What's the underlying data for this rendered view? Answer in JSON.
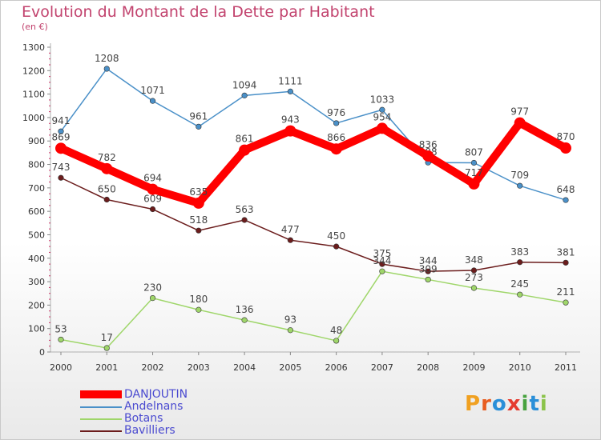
{
  "title": "Evolution du Montant de la Dette par Habitant",
  "subtitle": "(en €)",
  "logo": {
    "text": "Proxiti",
    "letters": [
      "P",
      "r",
      "o",
      "x",
      "i",
      "t",
      "i"
    ],
    "colors": [
      "#f0a020",
      "#e85d20",
      "#2a8fd8",
      "#e53b2f",
      "#47a23f",
      "#2a8fd8",
      "#8bc34a"
    ]
  },
  "chart_data": {
    "type": "line",
    "title": "Evolution du Montant de la Dette par Habitant",
    "ylabel": "(en €)",
    "ylim": [
      0,
      1300
    ],
    "yticks": [
      0,
      100,
      200,
      300,
      400,
      500,
      600,
      700,
      800,
      900,
      1000,
      1100,
      1200,
      1300
    ],
    "grid": false,
    "legend_position": "bottom-left",
    "x": [
      "2000",
      "2001",
      "2002",
      "2003",
      "2004",
      "2005",
      "2006",
      "2007",
      "2008",
      "2009",
      "2010",
      "2011"
    ],
    "series": [
      {
        "name": "Andelnans",
        "color": "#4a90c8",
        "values": [
          941,
          1208,
          1071,
          961,
          1094,
          1111,
          976,
          1033,
          808,
          807,
          709,
          648
        ],
        "labels": [
          "941",
          "1208",
          "1071",
          "961",
          "1094",
          "1111",
          "976",
          "1033",
          "808",
          "807",
          "709",
          "648"
        ]
      },
      {
        "name": "Bavilliers",
        "color": "#6b1c1c",
        "values": [
          743,
          650,
          609,
          518,
          563,
          477,
          450,
          375,
          344,
          348,
          383,
          381
        ],
        "labels": [
          "743",
          "650",
          "609",
          "518",
          "563",
          "477",
          "450",
          "375",
          "344",
          "348",
          "383",
          "381"
        ]
      },
      {
        "name": "Botans",
        "color": "#9fd66a",
        "values": [
          53,
          17,
          230,
          180,
          136,
          93,
          48,
          344,
          309,
          273,
          245,
          211
        ],
        "labels": [
          "53",
          "17",
          "230",
          "180",
          "136",
          "93",
          "48",
          "344",
          "309",
          "273",
          "245",
          "211"
        ]
      },
      {
        "name": "DANJOUTIN",
        "color": "#ff0000",
        "values": [
          869,
          782,
          694,
          635,
          861,
          943,
          866,
          954,
          836,
          717,
          977,
          870
        ],
        "labels": [
          "869",
          "782",
          "694",
          "635",
          "861",
          "943",
          "866",
          "954",
          "836",
          "717",
          "977",
          "870"
        ]
      }
    ],
    "legend": [
      {
        "name": "DANJOUTIN",
        "color": "#ff0000"
      },
      {
        "name": "Andelnans",
        "color": "#4a90c8"
      },
      {
        "name": "Botans",
        "color": "#9fd66a"
      },
      {
        "name": "Bavilliers",
        "color": "#6b1c1c"
      }
    ]
  }
}
